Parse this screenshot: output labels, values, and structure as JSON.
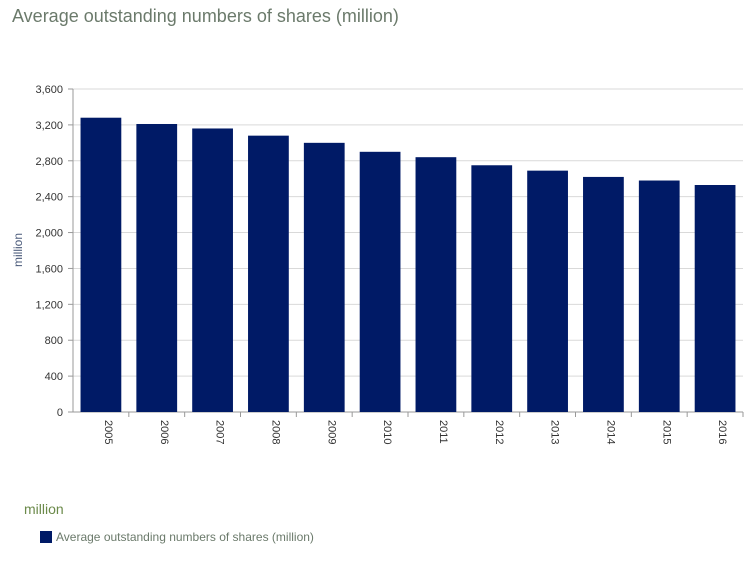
{
  "title": "Average outstanding numbers of shares (million)",
  "unit_label": "million",
  "legend": {
    "label": "Average outstanding numbers of shares (million)",
    "icon": "square-swatch"
  },
  "colors": {
    "bar": "#001a66",
    "title": "#6b7a6b",
    "grid": "#d9d9d9",
    "axis": "#999999"
  },
  "chart_data": {
    "type": "bar",
    "title": "Average outstanding numbers of shares (million)",
    "xlabel": "",
    "ylabel": "million",
    "ylim": [
      0,
      3600
    ],
    "yticks": [
      0,
      400,
      800,
      1200,
      1600,
      2000,
      2400,
      2800,
      3200,
      3600
    ],
    "ytick_labels": [
      "0",
      "400",
      "800",
      "1,200",
      "1,600",
      "2,000",
      "2,400",
      "2,800",
      "3,200",
      "3,600"
    ],
    "categories": [
      "2005",
      "2006",
      "2007",
      "2008",
      "2009",
      "2010",
      "2011",
      "2012",
      "2013",
      "2014",
      "2015",
      "2016"
    ],
    "series": [
      {
        "name": "Average outstanding numbers of shares (million)",
        "values": [
          3280,
          3210,
          3160,
          3080,
          3000,
          2900,
          2840,
          2750,
          2690,
          2620,
          2580,
          2530
        ]
      }
    ],
    "grid": true,
    "legend_position": "bottom-left"
  }
}
